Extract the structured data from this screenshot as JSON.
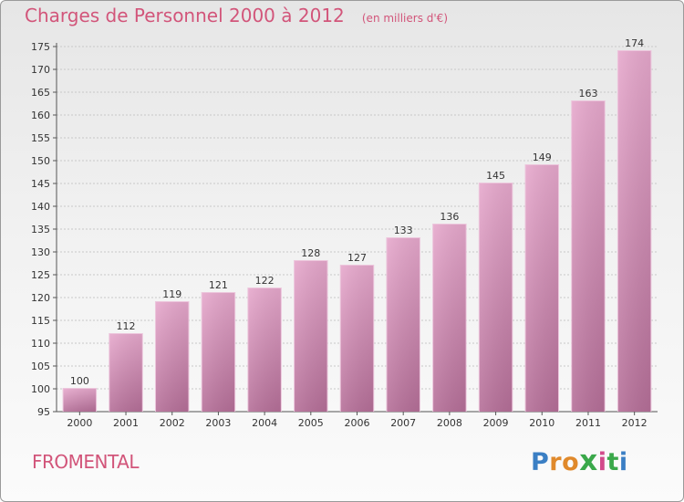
{
  "header": {
    "title": "Charges de Personnel 2000 à 2012",
    "subtitle": "(en milliers d'€)"
  },
  "footer": {
    "commune": "FROMENTAL",
    "logo": {
      "letters": [
        "P",
        "r",
        "o",
        "x",
        "i",
        "t",
        "i"
      ],
      "colors": [
        "#3b7fc4",
        "#e0892b",
        "#e0892b",
        "#3aa84a",
        "#d24a8b",
        "#3aa84a",
        "#3b7fc4"
      ]
    }
  },
  "colors": {
    "bar_top": "#e6a8cc",
    "bar_bottom": "#b56f98",
    "accent": "#d2557a"
  },
  "chart_data": {
    "type": "bar",
    "title": "Charges de Personnel 2000 à 2012",
    "subtitle": "(en milliers d'€)",
    "categories": [
      "2000",
      "2001",
      "2002",
      "2003",
      "2004",
      "2005",
      "2006",
      "2007",
      "2008",
      "2009",
      "2010",
      "2011",
      "2012"
    ],
    "values": [
      100,
      112,
      119,
      121,
      122,
      128,
      127,
      133,
      136,
      145,
      149,
      163,
      174
    ],
    "ylim": [
      95,
      175
    ],
    "yticks": [
      95,
      100,
      105,
      110,
      115,
      120,
      125,
      130,
      135,
      140,
      145,
      150,
      155,
      160,
      165,
      170,
      175
    ],
    "grid": true,
    "xlabel": "",
    "ylabel": ""
  }
}
